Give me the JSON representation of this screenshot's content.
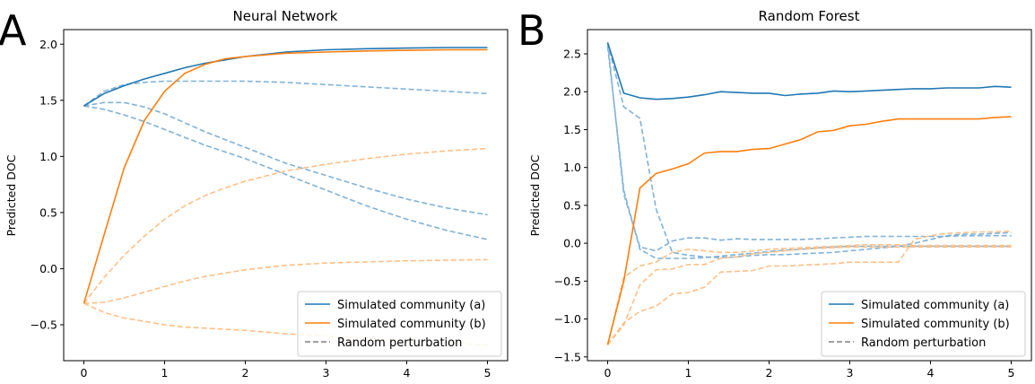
{
  "panels": [
    {
      "letter": "A",
      "title": "Neural Network",
      "ylabel": "Predicted DOC",
      "xticks": [
        0,
        1,
        2,
        3,
        4,
        5
      ],
      "yticks": [
        -0.5,
        0.0,
        0.5,
        1.0,
        1.5,
        2.0
      ],
      "xlim": [
        -0.25,
        5.25
      ],
      "ylim": [
        -0.82,
        2.13
      ],
      "legend": [
        "Simulated community (a)",
        "Simulated community (b)",
        "Random perturbation"
      ]
    },
    {
      "letter": "B",
      "title": "Random Forest",
      "ylabel": "Predicted DOC",
      "xticks": [
        0,
        1,
        2,
        3,
        4,
        5
      ],
      "yticks": [
        -1.5,
        -1.0,
        -0.5,
        0.0,
        0.5,
        1.0,
        1.5,
        2.0,
        2.5
      ],
      "xlim": [
        -0.25,
        5.25
      ],
      "ylim": [
        -1.55,
        2.82
      ],
      "legend": [
        "Simulated community (a)",
        "Simulated community (b)",
        "Random perturbation"
      ]
    }
  ],
  "colors": {
    "a": "#1f77b4",
    "b": "#ff7f0e",
    "a_perturb": "#7fb2d8",
    "b_perturb": "#ffbf86",
    "legend_perturb": "#808080"
  },
  "chart_data": [
    {
      "type": "line",
      "title": "Neural Network",
      "xlabel": "",
      "ylabel": "Predicted DOC",
      "xlim": [
        -0.25,
        5.25
      ],
      "ylim": [
        -0.82,
        2.13
      ],
      "x": [
        0,
        0.25,
        0.5,
        0.75,
        1.0,
        1.25,
        1.5,
        1.75,
        2.0,
        2.5,
        3.0,
        3.5,
        4.0,
        4.5,
        5.0
      ],
      "series": [
        {
          "name": "Simulated community (a)",
          "style": "solid",
          "color": "a",
          "values": [
            1.45,
            1.56,
            1.63,
            1.69,
            1.74,
            1.79,
            1.83,
            1.86,
            1.89,
            1.93,
            1.95,
            1.96,
            1.965,
            1.97,
            1.97
          ]
        },
        {
          "name": "Simulated community (b)",
          "style": "solid",
          "color": "b",
          "values": [
            -0.31,
            0.3,
            0.9,
            1.32,
            1.58,
            1.74,
            1.82,
            1.87,
            1.89,
            1.92,
            1.93,
            1.94,
            1.945,
            1.95,
            1.95
          ]
        },
        {
          "name": "",
          "style": "dashed",
          "color": "a_perturb",
          "values": [
            1.45,
            1.58,
            1.64,
            1.66,
            1.67,
            1.67,
            1.67,
            1.67,
            1.67,
            1.66,
            1.64,
            1.62,
            1.6,
            1.58,
            1.56
          ]
        },
        {
          "name": "",
          "style": "dashed",
          "color": "a_perturb",
          "values": [
            1.45,
            1.48,
            1.48,
            1.44,
            1.38,
            1.3,
            1.22,
            1.15,
            1.08,
            0.94,
            0.83,
            0.72,
            0.62,
            0.54,
            0.48
          ]
        },
        {
          "name": "",
          "style": "dashed",
          "color": "a_perturb",
          "values": [
            1.45,
            1.42,
            1.37,
            1.31,
            1.24,
            1.17,
            1.1,
            1.04,
            0.98,
            0.84,
            0.7,
            0.56,
            0.44,
            0.34,
            0.26
          ]
        },
        {
          "name": "",
          "style": "dashed",
          "color": "b_perturb",
          "values": [
            -0.31,
            -0.08,
            0.12,
            0.29,
            0.44,
            0.56,
            0.65,
            0.72,
            0.78,
            0.87,
            0.93,
            0.98,
            1.02,
            1.05,
            1.07
          ]
        },
        {
          "name": "",
          "style": "dashed",
          "color": "b_perturb",
          "values": [
            -0.31,
            -0.3,
            -0.26,
            -0.21,
            -0.16,
            -0.11,
            -0.07,
            -0.04,
            -0.01,
            0.03,
            0.05,
            0.06,
            0.07,
            0.075,
            0.08
          ]
        },
        {
          "name": "",
          "style": "dashed",
          "color": "b_perturb",
          "values": [
            -0.31,
            -0.39,
            -0.44,
            -0.47,
            -0.5,
            -0.52,
            -0.53,
            -0.54,
            -0.55,
            -0.58,
            -0.6,
            -0.62,
            -0.64,
            -0.66,
            -0.68
          ]
        }
      ]
    },
    {
      "type": "line",
      "title": "Random Forest",
      "xlabel": "",
      "ylabel": "Predicted DOC",
      "xlim": [
        -0.25,
        5.25
      ],
      "ylim": [
        -1.55,
        2.82
      ],
      "x": [
        0,
        0.2,
        0.4,
        0.6,
        0.8,
        1.0,
        1.2,
        1.4,
        1.6,
        1.8,
        2.0,
        2.2,
        2.4,
        2.6,
        2.8,
        3.0,
        3.2,
        3.4,
        3.6,
        3.8,
        4.0,
        4.2,
        4.4,
        4.6,
        4.8,
        5.0
      ],
      "series": [
        {
          "name": "Simulated community (a)",
          "style": "solid",
          "color": "a",
          "values": [
            2.65,
            1.98,
            1.92,
            1.9,
            1.91,
            1.93,
            1.96,
            2.0,
            1.99,
            1.98,
            1.98,
            1.95,
            1.97,
            1.98,
            2.01,
            2.0,
            2.01,
            2.02,
            2.03,
            2.04,
            2.04,
            2.05,
            2.05,
            2.05,
            2.07,
            2.06
          ]
        },
        {
          "name": "Simulated community (b)",
          "style": "solid",
          "color": "b",
          "values": [
            -1.34,
            -0.5,
            0.73,
            0.92,
            0.98,
            1.05,
            1.19,
            1.21,
            1.21,
            1.24,
            1.25,
            1.31,
            1.37,
            1.47,
            1.49,
            1.55,
            1.57,
            1.61,
            1.64,
            1.64,
            1.64,
            1.64,
            1.64,
            1.64,
            1.66,
            1.67
          ]
        },
        {
          "name": "",
          "style": "dashed",
          "color": "a_perturb",
          "values": [
            2.65,
            0.65,
            -0.05,
            -0.1,
            0.03,
            0.07,
            0.07,
            0.04,
            0.06,
            0.05,
            0.05,
            0.05,
            0.05,
            0.06,
            0.07,
            0.08,
            0.09,
            0.09,
            0.09,
            0.09,
            0.09,
            0.09,
            0.1,
            0.1,
            0.1,
            0.1
          ]
        },
        {
          "name": "",
          "style": "dashed",
          "color": "a_perturb",
          "values": [
            2.65,
            1.8,
            1.65,
            0.45,
            -0.12,
            -0.16,
            -0.18,
            -0.19,
            -0.18,
            -0.16,
            -0.15,
            -0.15,
            -0.14,
            -0.13,
            -0.12,
            -0.1,
            -0.08,
            -0.06,
            -0.04,
            0.0,
            0.05,
            0.1,
            0.12,
            0.12,
            0.13,
            0.14
          ]
        },
        {
          "name": "",
          "style": "dashed",
          "color": "a_perturb",
          "values": [
            2.6,
            0.7,
            -0.08,
            -0.2,
            -0.2,
            -0.2,
            -0.19,
            -0.17,
            -0.15,
            -0.13,
            -0.11,
            -0.09,
            -0.08,
            -0.06,
            -0.05,
            -0.04,
            -0.04,
            -0.04,
            -0.04,
            -0.04,
            -0.04,
            -0.04,
            -0.04,
            -0.04,
            -0.04,
            -0.04
          ]
        },
        {
          "name": "",
          "style": "dashed",
          "color": "b_perturb",
          "values": [
            -1.34,
            -0.45,
            -0.3,
            -0.25,
            -0.12,
            -0.08,
            -0.1,
            -0.12,
            -0.12,
            -0.1,
            -0.08,
            -0.07,
            -0.06,
            -0.05,
            -0.04,
            -0.03,
            -0.02,
            -0.02,
            -0.02,
            -0.03,
            -0.03,
            -0.03,
            -0.03,
            -0.03,
            -0.03,
            -0.03
          ]
        },
        {
          "name": "",
          "style": "dashed",
          "color": "b_perturb",
          "values": [
            -1.34,
            -1.08,
            -0.55,
            -0.35,
            -0.34,
            -0.28,
            -0.28,
            -0.2,
            -0.18,
            -0.14,
            -0.12,
            -0.1,
            -0.08,
            -0.07,
            -0.06,
            -0.05,
            -0.05,
            -0.05,
            -0.05,
            -0.05,
            -0.05,
            -0.05,
            -0.05,
            -0.05,
            -0.05,
            -0.05
          ]
        },
        {
          "name": "",
          "style": "dashed",
          "color": "b_perturb",
          "values": [
            -1.34,
            -1.05,
            -0.9,
            -0.83,
            -0.67,
            -0.65,
            -0.58,
            -0.38,
            -0.37,
            -0.36,
            -0.3,
            -0.3,
            -0.29,
            -0.28,
            -0.27,
            -0.25,
            -0.25,
            -0.25,
            -0.25,
            0.05,
            0.1,
            0.13,
            0.14,
            0.15,
            0.15,
            0.16
          ]
        }
      ]
    }
  ]
}
